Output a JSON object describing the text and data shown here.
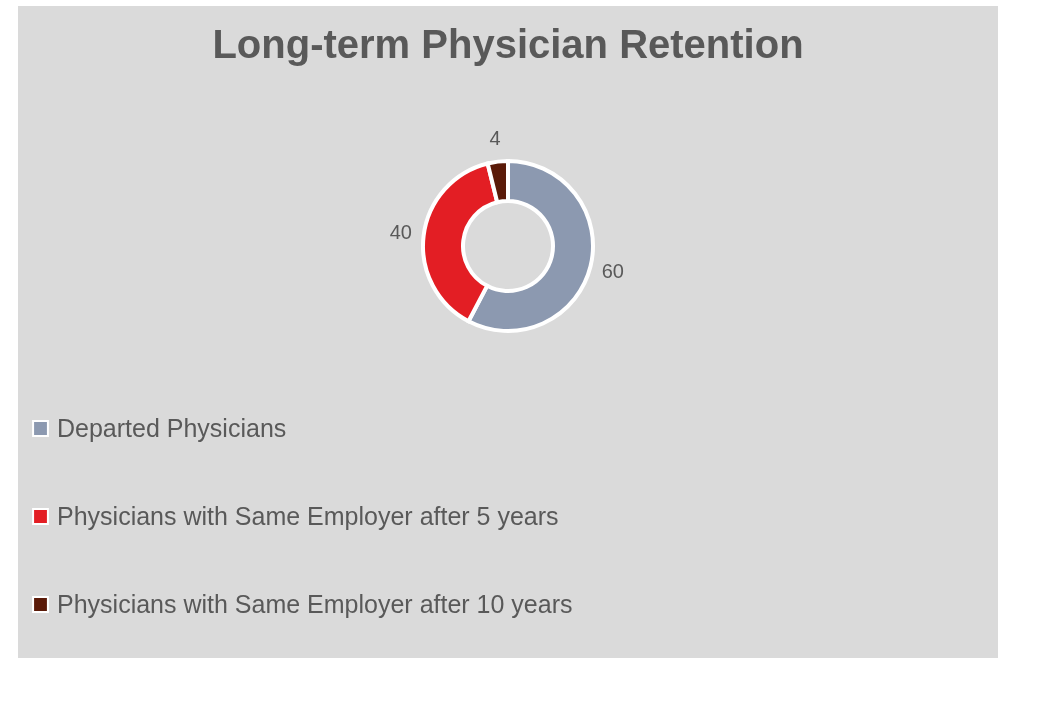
{
  "chart_data": {
    "type": "donut",
    "title": "Long-term Physician Retention",
    "categories": [
      "Departed Physicians",
      "Physicians with Same Employer after 5 years",
      "Physicians with Same Employer after 10 years"
    ],
    "values": [
      60,
      40,
      4
    ],
    "colors": [
      "#8c99b0",
      "#e31e24",
      "#5a1a08"
    ],
    "data_labels": true,
    "legend": "bottom"
  }
}
